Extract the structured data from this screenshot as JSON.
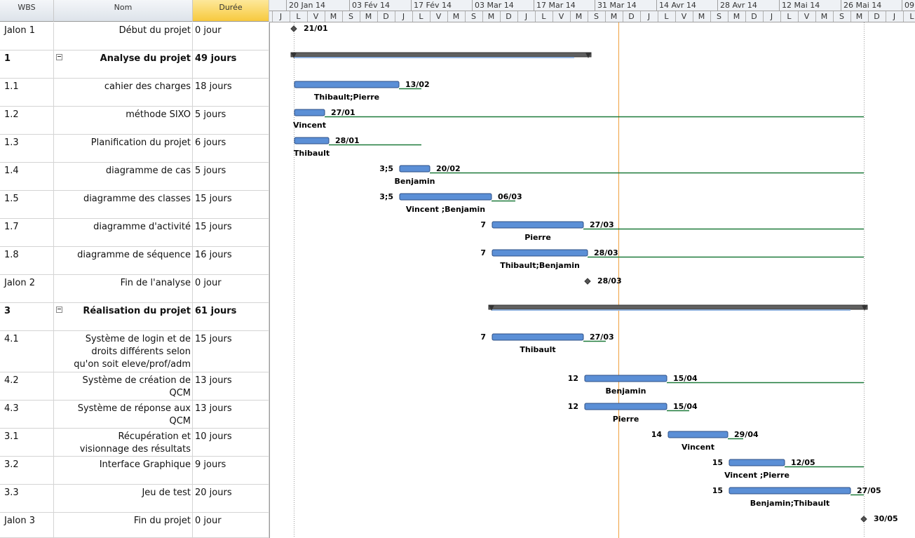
{
  "columns": {
    "wbs": "WBS",
    "name": "Nom",
    "duration": "Durée"
  },
  "timeline": {
    "weeks": [
      "20 Jan 14",
      "03 Fév 14",
      "17 Fév 14",
      "03 Mar 14",
      "17 Mar 14",
      "31 Mar 14",
      "14 Avr 14",
      "28 Avr 14",
      "12 Mai 14",
      "26 Mai 14",
      "09"
    ],
    "days": [
      "J",
      "L",
      "V",
      "M",
      "S",
      "M",
      "D",
      "J",
      "L",
      "V",
      "M",
      "S",
      "M",
      "D",
      "J",
      "L",
      "V",
      "M",
      "S",
      "M",
      "D",
      "J",
      "L",
      "V",
      "M",
      "S",
      "M",
      "D",
      "J",
      "L",
      "V",
      "M",
      "S",
      "M",
      "D",
      "J",
      "L"
    ]
  },
  "rows": [
    {
      "wbs": "Jalon 1",
      "name": "Début du projet",
      "duration": "0 jour",
      "finish": "21/01"
    },
    {
      "wbs": "1",
      "name": "Analyse du projet",
      "duration": "49 jours",
      "summary": true
    },
    {
      "wbs": "1.1",
      "name": "cahier des charges",
      "duration": "18 jours",
      "finish": "13/02",
      "resources": "Thibault;Pierre"
    },
    {
      "wbs": "1.2",
      "name": "méthode SIXO",
      "duration": "5 jours",
      "finish": "27/01",
      "resources": "Vincent"
    },
    {
      "wbs": "1.3",
      "name": "Planification du projet",
      "duration": "6 jours",
      "finish": "28/01",
      "resources": "Thibault"
    },
    {
      "wbs": "1.4",
      "name": "diagramme de cas",
      "duration": "5 jours",
      "predecessors": "3;5",
      "finish": "20/02",
      "resources": "Benjamin"
    },
    {
      "wbs": "1.5",
      "name": "diagramme des classes",
      "duration": "15 jours",
      "predecessors": "3;5",
      "finish": "06/03",
      "resources": "Vincent ;Benjamin"
    },
    {
      "wbs": "1.7",
      "name": "diagramme d'activité",
      "duration": "15 jours",
      "predecessors": "7",
      "finish": "27/03",
      "resources": "Pierre"
    },
    {
      "wbs": "1.8",
      "name": "diagramme de séquence",
      "duration": "16 jours",
      "predecessors": "7",
      "finish": "28/03",
      "resources": "Thibault;Benjamin"
    },
    {
      "wbs": "Jalon 2",
      "name": "Fin de l'analyse",
      "duration": "0 jour",
      "finish": "28/03"
    },
    {
      "wbs": "3",
      "name": "Réalisation du projet",
      "duration": "61 jours",
      "summary": true
    },
    {
      "wbs": "4.1",
      "name": "Système de login et de droits différents selon qu'on soit eleve/prof/adm",
      "duration": "15 jours",
      "predecessors": "7",
      "finish": "27/03",
      "resources": "Thibault"
    },
    {
      "wbs": "4.2",
      "name": "Système de création de QCM",
      "duration": "13 jours",
      "predecessors": "12",
      "finish": "15/04",
      "resources": "Benjamin"
    },
    {
      "wbs": "4.3",
      "name": "Système de réponse aux QCM",
      "duration": "13 jours",
      "predecessors": "12",
      "finish": "15/04",
      "resources": "Pierre"
    },
    {
      "wbs": "3.1",
      "name": "Récupération et visionnage des résultats",
      "duration": "10 jours",
      "predecessors": "14",
      "finish": "29/04",
      "resources": "Vincent"
    },
    {
      "wbs": "3.2",
      "name": "Interface Graphique",
      "duration": "9 jours",
      "predecessors": "15",
      "finish": "12/05",
      "resources": "Vincent ;Pierre"
    },
    {
      "wbs": "3.3",
      "name": "Jeu de test",
      "duration": "20 jours",
      "predecessors": "15",
      "finish": "27/05",
      "resources": "Benjamin;Thibault"
    },
    {
      "wbs": "Jalon 3",
      "name": "Fin du projet",
      "duration": "0 jour",
      "finish": "30/05"
    }
  ]
}
